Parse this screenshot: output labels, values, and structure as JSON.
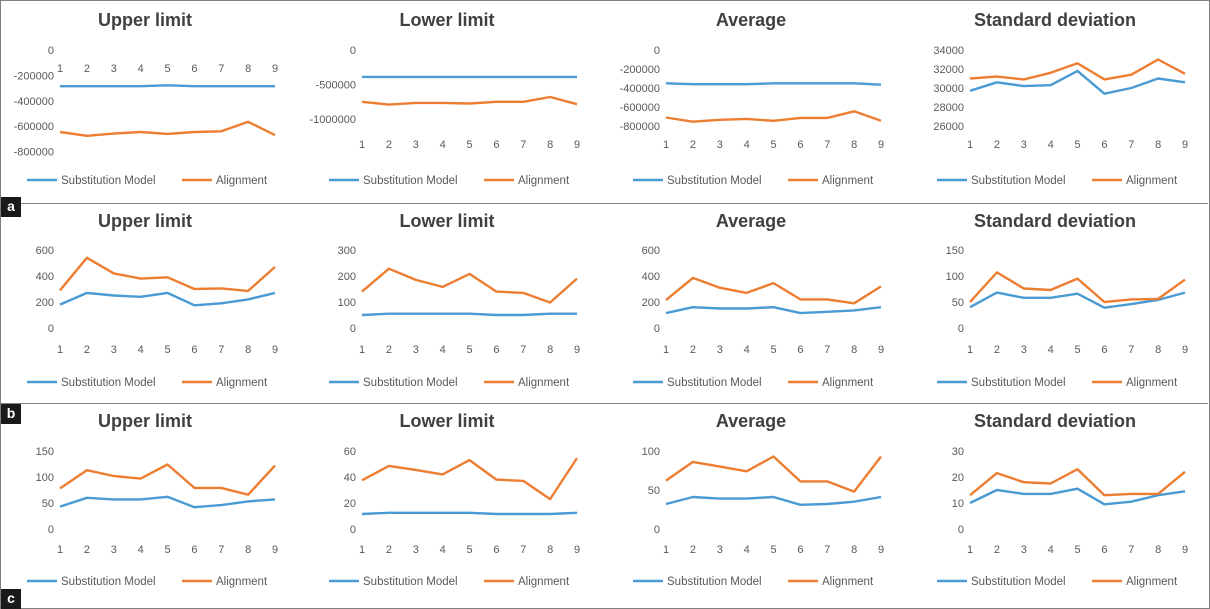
{
  "colors": {
    "substitution": "#4a9ad4",
    "alignment": "#ed7d31",
    "axis_text": "#595959",
    "title_text": "#404040"
  },
  "panels": [
    {
      "label": "a"
    },
    {
      "label": "b"
    },
    {
      "label": "c"
    }
  ],
  "chart_data": [
    {
      "type": "line",
      "panel": "a",
      "title": "Upper limit",
      "categories": [
        "1",
        "2",
        "3",
        "4",
        "5",
        "6",
        "7",
        "8",
        "9"
      ],
      "yticks": [
        0,
        -200000,
        -400000,
        -600000,
        -800000
      ],
      "ylim": [
        -850000,
        0
      ],
      "x_axis_at": 0,
      "series": [
        {
          "name": "Substitution Model",
          "values": [
            -285000,
            -285000,
            -285000,
            -285000,
            -278000,
            -285000,
            -285000,
            -285000,
            -285000
          ]
        },
        {
          "name": "Alignment",
          "values": [
            -645000,
            -675000,
            -658000,
            -645000,
            -660000,
            -645000,
            -640000,
            -565000,
            -670000
          ]
        }
      ]
    },
    {
      "type": "line",
      "panel": "a",
      "title": "Lower limit",
      "categories": [
        "1",
        "2",
        "3",
        "4",
        "5",
        "6",
        "7",
        "8",
        "9"
      ],
      "yticks": [
        0,
        -500000,
        -1000000
      ],
      "ylim": [
        -1100000,
        0
      ],
      "x_axis_at": -1100000,
      "series": [
        {
          "name": "Substitution Model",
          "values": [
            -390000,
            -390000,
            -390000,
            -390000,
            -390000,
            -390000,
            -390000,
            -390000,
            -390000
          ]
        },
        {
          "name": "Alignment",
          "values": [
            -750000,
            -790000,
            -765000,
            -765000,
            -775000,
            -750000,
            -750000,
            -680000,
            -785000
          ]
        }
      ]
    },
    {
      "type": "line",
      "panel": "a",
      "title": "Average",
      "categories": [
        "1",
        "2",
        "3",
        "4",
        "5",
        "6",
        "7",
        "8",
        "9"
      ],
      "yticks": [
        0,
        -200000,
        -400000,
        -600000,
        -800000
      ],
      "ylim": [
        -800000,
        0
      ],
      "x_axis_at": -800000,
      "series": [
        {
          "name": "Substitution Model",
          "values": [
            -350000,
            -360000,
            -360000,
            -360000,
            -350000,
            -350000,
            -350000,
            -350000,
            -365000
          ]
        },
        {
          "name": "Alignment",
          "values": [
            -710000,
            -755000,
            -735000,
            -725000,
            -745000,
            -715000,
            -715000,
            -645000,
            -745000
          ]
        }
      ]
    },
    {
      "type": "line",
      "panel": "a",
      "title": "Standard deviation",
      "categories": [
        "1",
        "2",
        "3",
        "4",
        "5",
        "6",
        "7",
        "8",
        "9"
      ],
      "yticks": [
        34000,
        32000,
        30000,
        28000,
        26000
      ],
      "ylim": [
        26000,
        34000
      ],
      "x_axis_at": 26000,
      "series": [
        {
          "name": "Substitution Model",
          "values": [
            29700,
            30600,
            30200,
            30300,
            31800,
            29400,
            30000,
            31000,
            30600
          ]
        },
        {
          "name": "Alignment",
          "values": [
            31000,
            31200,
            30900,
            31600,
            32600,
            30900,
            31400,
            33000,
            31500
          ]
        }
      ]
    },
    {
      "type": "line",
      "panel": "b",
      "title": "Upper limit",
      "categories": [
        "1",
        "2",
        "3",
        "4",
        "5",
        "6",
        "7",
        "8",
        "9"
      ],
      "yticks": [
        600,
        400,
        200,
        0
      ],
      "ylim": [
        0,
        600
      ],
      "x_axis_at": 0,
      "series": [
        {
          "name": "Substitution Model",
          "values": [
            180,
            270,
            250,
            240,
            270,
            175,
            190,
            220,
            270
          ]
        },
        {
          "name": "Alignment",
          "values": [
            290,
            540,
            420,
            380,
            390,
            300,
            305,
            285,
            470
          ]
        }
      ]
    },
    {
      "type": "line",
      "panel": "b",
      "title": "Lower limit",
      "categories": [
        "1",
        "2",
        "3",
        "4",
        "5",
        "6",
        "7",
        "8",
        "9"
      ],
      "yticks": [
        300,
        200,
        100,
        0
      ],
      "ylim": [
        0,
        300
      ],
      "x_axis_at": 0,
      "series": [
        {
          "name": "Substitution Model",
          "values": [
            50,
            55,
            55,
            55,
            55,
            50,
            50,
            55,
            55
          ]
        },
        {
          "name": "Alignment",
          "values": [
            140,
            228,
            185,
            158,
            208,
            140,
            135,
            98,
            190
          ]
        }
      ]
    },
    {
      "type": "line",
      "panel": "b",
      "title": "Average",
      "categories": [
        "1",
        "2",
        "3",
        "4",
        "5",
        "6",
        "7",
        "8",
        "9"
      ],
      "yticks": [
        600,
        400,
        200,
        0
      ],
      "ylim": [
        0,
        600
      ],
      "x_axis_at": 0,
      "series": [
        {
          "name": "Substitution Model",
          "values": [
            115,
            160,
            150,
            150,
            160,
            115,
            125,
            135,
            160
          ]
        },
        {
          "name": "Alignment",
          "values": [
            215,
            385,
            310,
            270,
            345,
            220,
            220,
            190,
            320
          ]
        }
      ]
    },
    {
      "type": "line",
      "panel": "b",
      "title": "Standard deviation",
      "categories": [
        "1",
        "2",
        "3",
        "4",
        "5",
        "6",
        "7",
        "8",
        "9"
      ],
      "yticks": [
        150,
        100,
        50,
        0
      ],
      "ylim": [
        0,
        150
      ],
      "x_axis_at": 0,
      "series": [
        {
          "name": "Substitution Model",
          "values": [
            40,
            68,
            58,
            58,
            66,
            39,
            46,
            54,
            68
          ]
        },
        {
          "name": "Alignment",
          "values": [
            50,
            107,
            76,
            73,
            95,
            50,
            55,
            56,
            93
          ]
        }
      ]
    },
    {
      "type": "line",
      "panel": "c",
      "title": "Upper limit",
      "categories": [
        "1",
        "2",
        "3",
        "4",
        "5",
        "6",
        "7",
        "8",
        "9"
      ],
      "yticks": [
        150,
        100,
        50,
        0
      ],
      "ylim": [
        0,
        150
      ],
      "x_axis_at": 0,
      "series": [
        {
          "name": "Substitution Model",
          "values": [
            43,
            60,
            57,
            57,
            62,
            42,
            46,
            53,
            57
          ]
        },
        {
          "name": "Alignment",
          "values": [
            78,
            113,
            102,
            97,
            124,
            79,
            79,
            66,
            122
          ]
        }
      ]
    },
    {
      "type": "line",
      "panel": "c",
      "title": "Lower limit",
      "categories": [
        "1",
        "2",
        "3",
        "4",
        "5",
        "6",
        "7",
        "8",
        "9"
      ],
      "yticks": [
        60,
        40,
        20,
        0
      ],
      "ylim": [
        0,
        60
      ],
      "x_axis_at": 0,
      "series": [
        {
          "name": "Substitution Model",
          "values": [
            11.5,
            12.5,
            12.5,
            12.5,
            12.5,
            11.5,
            11.5,
            11.5,
            12.5
          ]
        },
        {
          "name": "Alignment",
          "values": [
            37.5,
            48.5,
            45.5,
            42,
            53,
            38,
            37,
            23,
            54.5
          ]
        }
      ]
    },
    {
      "type": "line",
      "panel": "c",
      "title": "Average",
      "categories": [
        "1",
        "2",
        "3",
        "4",
        "5",
        "6",
        "7",
        "8",
        "9"
      ],
      "yticks": [
        100,
        50,
        0
      ],
      "ylim": [
        0,
        100
      ],
      "x_axis_at": 0,
      "series": [
        {
          "name": "Substitution Model",
          "values": [
            32,
            41,
            39,
            39,
            41,
            31,
            32,
            35,
            41
          ]
        },
        {
          "name": "Alignment",
          "values": [
            62,
            86,
            80,
            74,
            93,
            61,
            61,
            48,
            93
          ]
        }
      ]
    },
    {
      "type": "line",
      "panel": "c",
      "title": "Standard deviation",
      "categories": [
        "1",
        "2",
        "3",
        "4",
        "5",
        "6",
        "7",
        "8",
        "9"
      ],
      "yticks": [
        30,
        20,
        10,
        0
      ],
      "ylim": [
        0,
        30
      ],
      "x_axis_at": 0,
      "series": [
        {
          "name": "Substitution Model",
          "values": [
            10,
            15,
            13.5,
            13.5,
            15.5,
            9.5,
            10.5,
            13,
            14.5
          ]
        },
        {
          "name": "Alignment",
          "values": [
            13,
            21.5,
            18,
            17.5,
            23,
            13,
            13.5,
            13.5,
            22
          ]
        }
      ]
    }
  ]
}
